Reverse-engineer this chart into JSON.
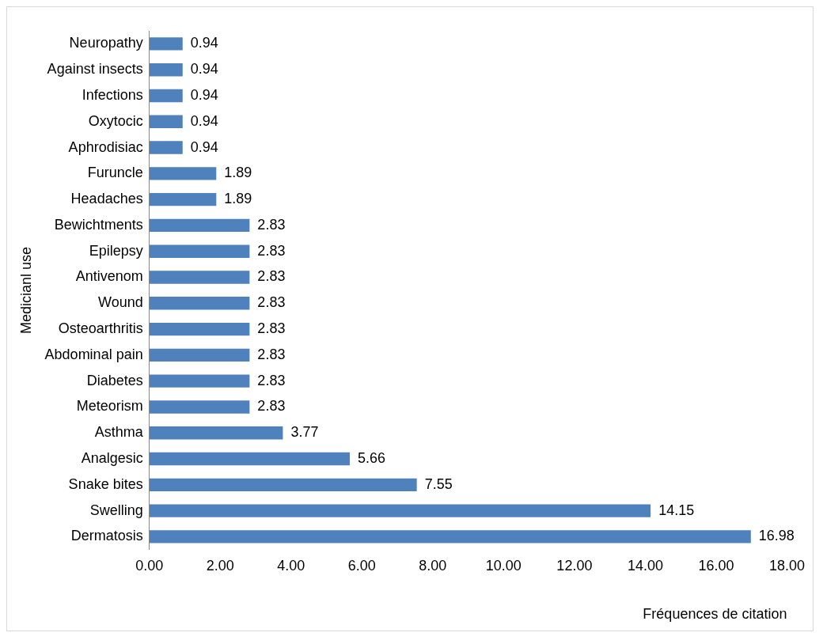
{
  "chart_data": {
    "type": "bar",
    "orientation": "horizontal",
    "xlabel": "Fréquences de citation",
    "ylabel": "Medicianl use",
    "categories": [
      "Neuropathy",
      "Against insects",
      "Infections",
      "Oxytocic",
      "Aphrodisiac",
      "Furuncle",
      "Headaches",
      "Bewichtments",
      "Epilepsy",
      "Antivenom",
      "Wound",
      "Osteoarthritis",
      "Abdominal pain",
      "Diabetes",
      "Meteorism",
      "Asthma",
      "Analgesic",
      "Snake bites",
      "Swelling",
      "Dermatosis"
    ],
    "values": [
      0.94,
      0.94,
      0.94,
      0.94,
      0.94,
      1.89,
      1.89,
      2.83,
      2.83,
      2.83,
      2.83,
      2.83,
      2.83,
      2.83,
      2.83,
      3.77,
      5.66,
      7.55,
      14.15,
      16.98
    ],
    "color": "#4f81bd",
    "data_labels": true,
    "xlim": [
      0,
      18
    ],
    "xticks": [
      {
        "value": 0,
        "label": "0.00"
      },
      {
        "value": 2,
        "label": "2.00"
      },
      {
        "value": 4,
        "label": "4.00"
      },
      {
        "value": 6,
        "label": "6.00"
      },
      {
        "value": 8,
        "label": "8.00"
      },
      {
        "value": 10,
        "label": "10.00"
      },
      {
        "value": 12,
        "label": "12.00"
      },
      {
        "value": 14,
        "label": "14.00"
      },
      {
        "value": 16,
        "label": "16.00"
      },
      {
        "value": 18,
        "label": "18.00"
      }
    ],
    "grid": false,
    "legend": false
  }
}
